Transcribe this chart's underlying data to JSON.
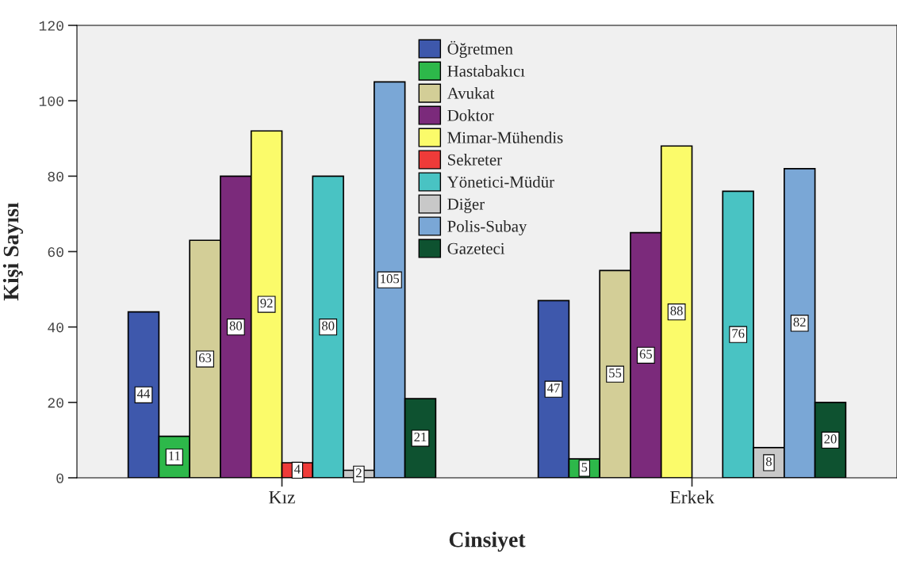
{
  "chart_data": {
    "type": "bar",
    "xlabel": "Cinsiyet",
    "ylabel": "Kişi Sayısı",
    "categories": [
      "Kız",
      "Erkek"
    ],
    "series": [
      {
        "name": "Öğretmen",
        "color": "#3e58ac",
        "values": [
          44,
          47
        ]
      },
      {
        "name": "Hastabakıcı",
        "color": "#2db84a",
        "values": [
          11,
          5
        ]
      },
      {
        "name": "Avukat",
        "color": "#d3ce97",
        "values": [
          63,
          55
        ]
      },
      {
        "name": "Doktor",
        "color": "#7b2a7b",
        "values": [
          80,
          65
        ]
      },
      {
        "name": "Mimar-Mühendis",
        "color": "#fbfb6a",
        "values": [
          92,
          88
        ]
      },
      {
        "name": "Sekreter",
        "color": "#ef3b39",
        "values": [
          4,
          null
        ]
      },
      {
        "name": "Yönetici-Müdür",
        "color": "#49c3c3",
        "values": [
          80,
          76
        ]
      },
      {
        "name": "Diğer",
        "color": "#c8c8c8",
        "values": [
          2,
          8
        ]
      },
      {
        "name": "Polis-Subay",
        "color": "#7aa7d6",
        "values": [
          105,
          82
        ]
      },
      {
        "name": "Gazeteci",
        "color": "#0e5230",
        "values": [
          21,
          20
        ]
      }
    ],
    "ylim": [
      0,
      120
    ],
    "yticks": [
      0,
      20,
      40,
      60,
      80,
      100,
      120
    ],
    "data_labels": true,
    "legend": "top",
    "grid": false
  }
}
